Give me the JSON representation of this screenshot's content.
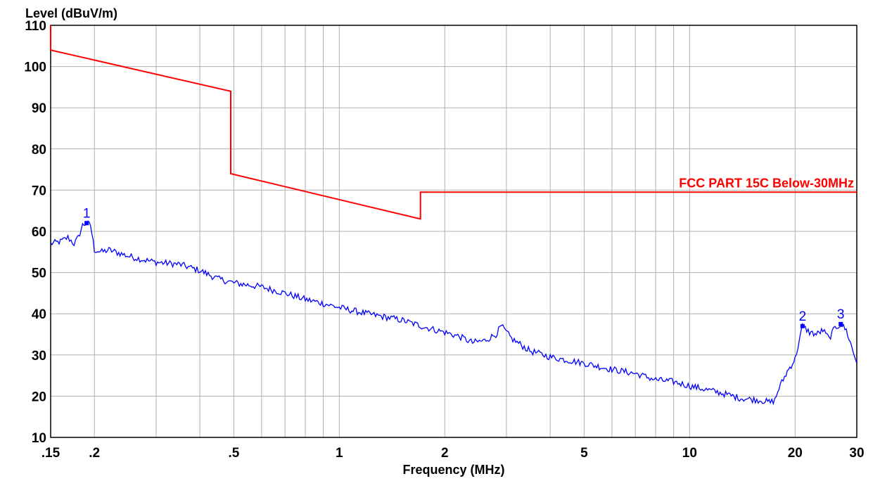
{
  "chart_data": {
    "type": "line",
    "xlabel": "Frequency (MHz)",
    "ylabel": "Level (dBuV/m)",
    "x_scale": "log",
    "xlim": [
      0.15,
      30
    ],
    "ylim": [
      10,
      110
    ],
    "grid": true,
    "x_ticks": [
      {
        "value": 0.15,
        "label": ".15"
      },
      {
        "value": 0.2,
        "label": ".2"
      },
      {
        "value": 0.5,
        "label": ".5"
      },
      {
        "value": 1,
        "label": "1"
      },
      {
        "value": 2,
        "label": "2"
      },
      {
        "value": 5,
        "label": "5"
      },
      {
        "value": 10,
        "label": "10"
      },
      {
        "value": 20,
        "label": "20"
      },
      {
        "value": 30,
        "label": "30"
      }
    ],
    "y_ticks": [
      10,
      20,
      30,
      40,
      50,
      60,
      70,
      80,
      90,
      100,
      110
    ],
    "colors": {
      "limit": "#ff0000",
      "measurement": "#0000ff",
      "grid": "#b0b0b0"
    },
    "series": [
      {
        "name": "FCC PART 15C Below-30MHz",
        "color": "#ff0000",
        "points": [
          [
            0.15,
            110
          ],
          [
            0.15,
            104
          ],
          [
            0.49,
            94
          ],
          [
            0.49,
            74
          ],
          [
            1.705,
            63
          ],
          [
            1.705,
            69.5
          ],
          [
            30,
            69.5
          ]
        ]
      },
      {
        "color": "#0000ff",
        "points": [
          [
            0.15,
            57
          ],
          [
            0.16,
            57.5
          ],
          [
            0.168,
            58.5
          ],
          [
            0.175,
            57
          ],
          [
            0.18,
            58.5
          ],
          [
            0.185,
            61.5
          ],
          [
            0.19,
            62
          ],
          [
            0.195,
            61.5
          ],
          [
            0.2,
            55.5
          ],
          [
            0.21,
            55
          ],
          [
            0.22,
            55.5
          ],
          [
            0.25,
            54
          ],
          [
            0.28,
            53
          ],
          [
            0.3,
            52.5
          ],
          [
            0.35,
            52
          ],
          [
            0.4,
            50.5
          ],
          [
            0.45,
            48.5
          ],
          [
            0.5,
            47.5
          ],
          [
            0.6,
            46.5
          ],
          [
            0.7,
            45
          ],
          [
            0.8,
            43.5
          ],
          [
            0.9,
            42.5
          ],
          [
            1,
            41.5
          ],
          [
            1.2,
            40
          ],
          [
            1.5,
            38.5
          ],
          [
            1.8,
            36.5
          ],
          [
            2,
            35.5
          ],
          [
            2.2,
            34.5
          ],
          [
            2.4,
            33
          ],
          [
            2.6,
            33.5
          ],
          [
            2.8,
            35
          ],
          [
            2.9,
            37
          ],
          [
            3.1,
            34
          ],
          [
            3.5,
            31
          ],
          [
            4,
            29.5
          ],
          [
            5,
            28
          ],
          [
            6,
            26.5
          ],
          [
            7,
            25.5
          ],
          [
            8,
            24
          ],
          [
            9,
            23.5
          ],
          [
            10,
            22.5
          ],
          [
            12,
            21
          ],
          [
            14,
            19.5
          ],
          [
            16,
            19
          ],
          [
            17,
            18.5
          ],
          [
            17.5,
            19
          ],
          [
            18,
            22
          ],
          [
            19,
            26
          ],
          [
            20,
            29
          ],
          [
            21,
            37
          ],
          [
            22,
            35.5
          ],
          [
            23,
            35
          ],
          [
            24,
            36
          ],
          [
            25,
            34
          ],
          [
            26,
            36.5
          ],
          [
            27,
            37.5
          ],
          [
            28,
            36
          ],
          [
            29,
            32
          ],
          [
            30,
            28
          ]
        ]
      }
    ],
    "markers": [
      {
        "label": "1",
        "x": 0.19,
        "y": 62
      },
      {
        "label": "2",
        "x": 21,
        "y": 37
      },
      {
        "label": "3",
        "x": 27,
        "y": 37.5
      }
    ]
  }
}
